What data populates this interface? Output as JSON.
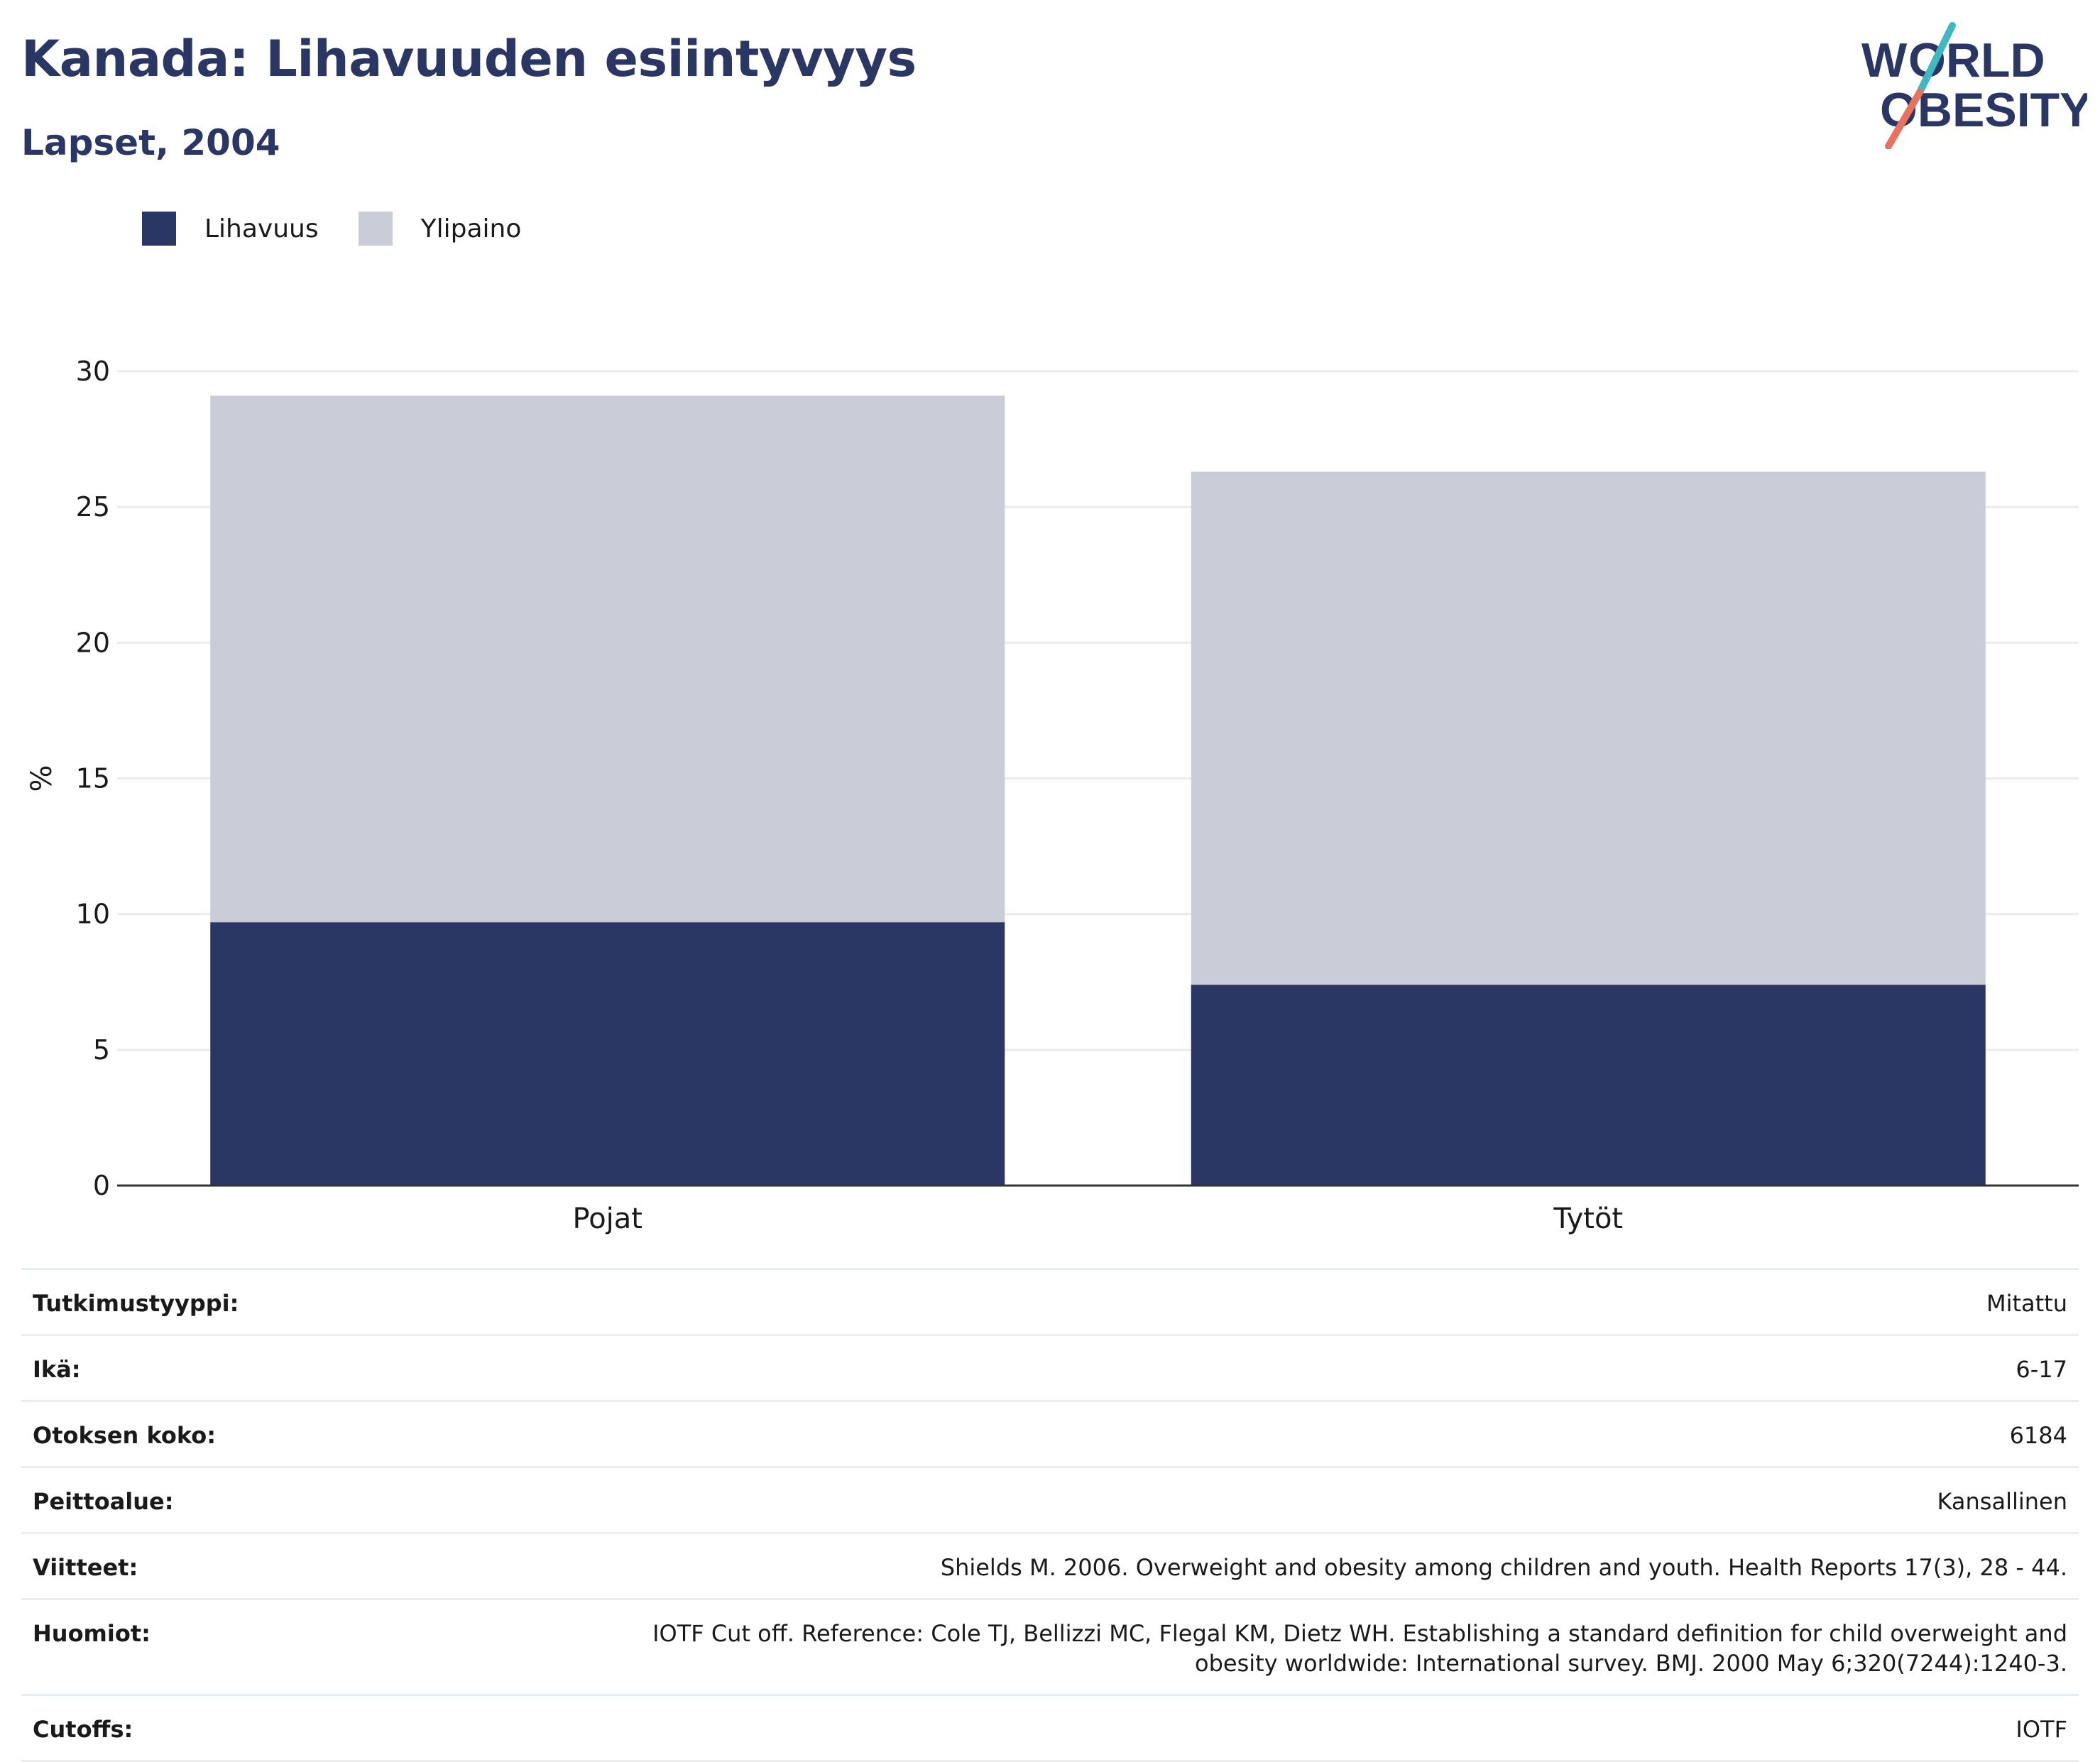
{
  "header": {
    "title": "Kanada: Lihavuuden esiintyvyys",
    "subtitle": "Lapset, 2004"
  },
  "logo": {
    "line1": "WORLD",
    "line2": "OBESITY",
    "colors": {
      "text": "#2a3663",
      "slash_top": "#3fb8c2",
      "slash_bottom": "#e8725e"
    }
  },
  "chart_data": {
    "type": "bar",
    "stacked": true,
    "categories": [
      "Pojat",
      "Tytöt"
    ],
    "series": [
      {
        "name": "Lihavuus",
        "values": [
          9.7,
          7.4
        ],
        "color": "#2a3663"
      },
      {
        "name": "Ylipaino",
        "values": [
          19.4,
          18.9
        ],
        "color": "#cacdd8"
      }
    ],
    "ylabel": "%",
    "ylim": [
      0,
      30
    ],
    "yticks": [
      0,
      5,
      10,
      15,
      20,
      25,
      30
    ],
    "grid": true,
    "legend_position": "top-left"
  },
  "info": [
    {
      "label": "Tutkimustyyppi:",
      "value": "Mitattu"
    },
    {
      "label": "Ikä:",
      "value": "6-17"
    },
    {
      "label": "Otoksen koko:",
      "value": "6184"
    },
    {
      "label": "Peittoalue:",
      "value": "Kansallinen"
    },
    {
      "label": "Viitteet:",
      "value": "Shields M. 2006. Overweight and obesity among children and youth. Health Reports 17(3), 28 - 44."
    },
    {
      "label": "Huomiot:",
      "value": "IOTF Cut off. Reference: Cole TJ, Bellizzi MC, Flegal KM, Dietz WH. Establishing a standard definition for child overweight and obesity worldwide: International survey. BMJ. 2000 May 6;320(7244):1240-3."
    },
    {
      "label": "Cutoffs:",
      "value": "IOTF"
    }
  ]
}
